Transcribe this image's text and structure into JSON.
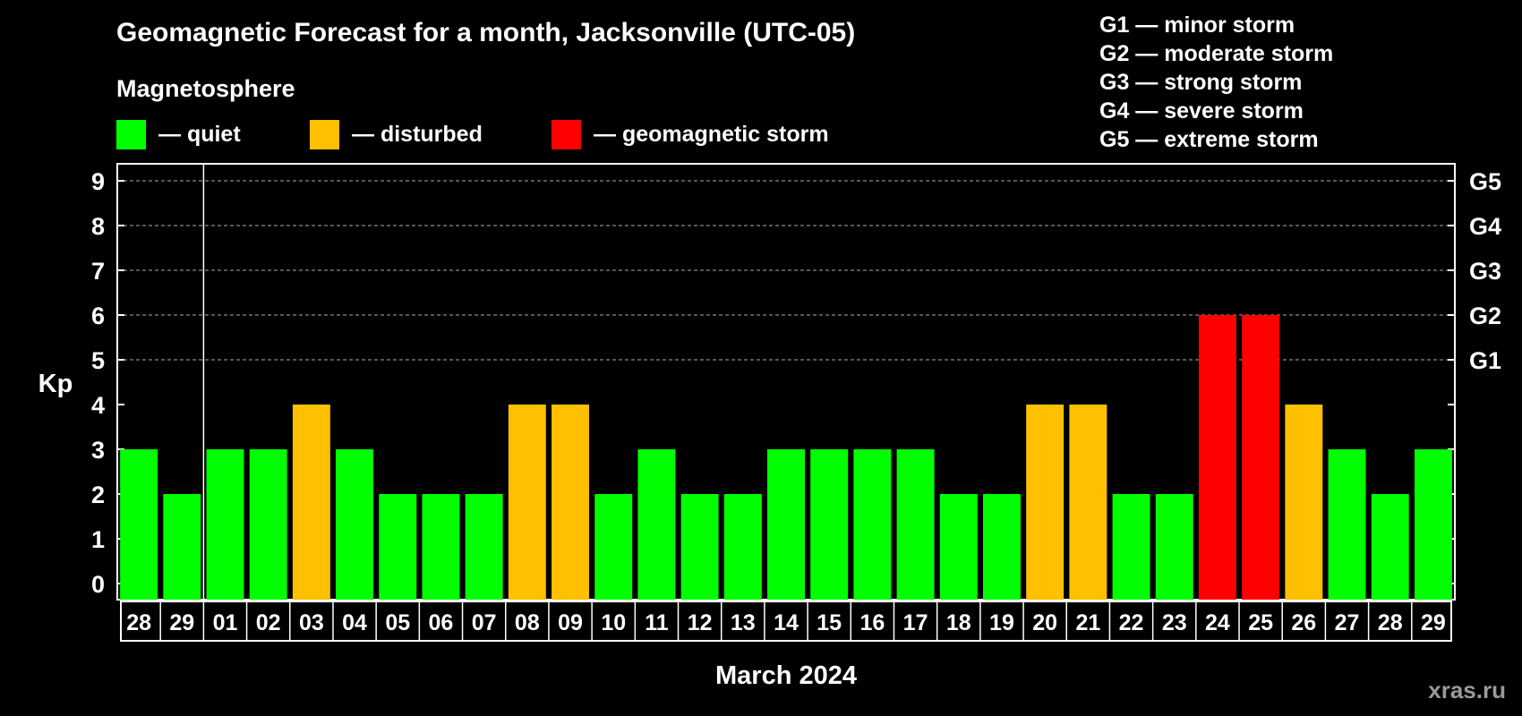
{
  "title": "Geomagnetic Forecast for a month, Jacksonville (UTC-05)",
  "subtitle": "Magnetosphere",
  "legend": [
    {
      "label": "— quiet",
      "color": "#00ff00"
    },
    {
      "label": "— disturbed",
      "color": "#ffc000"
    },
    {
      "label": "— geomagnetic storm",
      "color": "#ff0000"
    }
  ],
  "g_scale": [
    "G1 — minor storm",
    "G2 — moderate storm",
    "G3 — strong storm",
    "G4 — severe storm",
    "G5 — extreme storm"
  ],
  "watermark": "xras.ru",
  "chart_data": {
    "type": "bar",
    "title": "Geomagnetic Forecast for a month, Jacksonville (UTC-05)",
    "xlabel": "March 2024",
    "ylabel": "Kp",
    "ylim": [
      0,
      9
    ],
    "yticks": [
      "0",
      "1",
      "2",
      "3",
      "4",
      "5",
      "6",
      "7",
      "8",
      "9"
    ],
    "right_ticks": [
      {
        "kp": 5,
        "label": "G1"
      },
      {
        "kp": 6,
        "label": "G2"
      },
      {
        "kp": 7,
        "label": "G3"
      },
      {
        "kp": 8,
        "label": "G4"
      },
      {
        "kp": 9,
        "label": "G5"
      }
    ],
    "grid": "dashed horizontal lines at Kp 5-9",
    "month_divider_after": "29",
    "categories": [
      "28",
      "29",
      "01",
      "02",
      "03",
      "04",
      "05",
      "06",
      "07",
      "08",
      "09",
      "10",
      "11",
      "12",
      "13",
      "14",
      "15",
      "16",
      "17",
      "18",
      "19",
      "20",
      "21",
      "22",
      "23",
      "24",
      "25",
      "26",
      "27",
      "28",
      "29"
    ],
    "values": [
      3,
      2,
      3,
      3,
      4,
      3,
      2,
      2,
      2,
      4,
      4,
      2,
      3,
      2,
      2,
      3,
      3,
      3,
      3,
      2,
      2,
      4,
      4,
      2,
      2,
      6,
      6,
      4,
      3,
      2,
      3
    ],
    "colors": {
      "quiet": "#00ff00",
      "disturbed": "#ffc000",
      "storm": "#ff0000"
    }
  }
}
